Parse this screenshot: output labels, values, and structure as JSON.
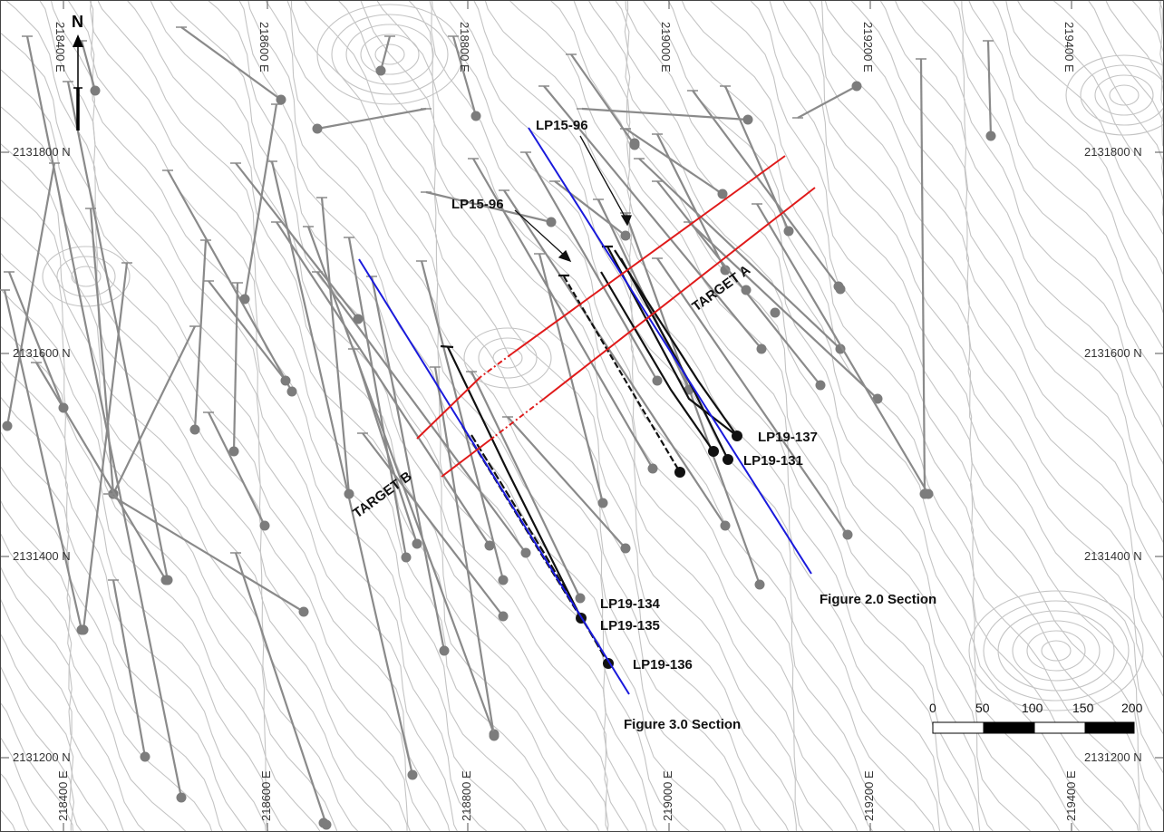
{
  "colors": {
    "contour": "#c4c4c4",
    "hole_trace": "#8a8a8a",
    "hole_collar": "#7c7c7c",
    "highlight_hole": "#111111",
    "section_line": "#1a1adc",
    "target_line": "#e01a1a",
    "grid_tick": "#555555"
  },
  "north_arrow": {
    "label": "N"
  },
  "grid": {
    "easting_top": [
      {
        "id": "e218400",
        "label": "218400 E"
      },
      {
        "id": "e218600",
        "label": "218600 E"
      },
      {
        "id": "e218800",
        "label": "218800 E"
      },
      {
        "id": "e219000",
        "label": "219000 E"
      },
      {
        "id": "e219200",
        "label": "219200 E"
      },
      {
        "id": "e219400",
        "label": "219400 E"
      }
    ],
    "easting_bottom": [
      {
        "id": "e218400",
        "label": "218400 E"
      },
      {
        "id": "e218600",
        "label": "218600 E"
      },
      {
        "id": "e218800",
        "label": "218800 E"
      },
      {
        "id": "e219000",
        "label": "219000 E"
      },
      {
        "id": "e219200",
        "label": "219200 E"
      },
      {
        "id": "e219400",
        "label": "219400 E"
      }
    ],
    "northing": [
      {
        "id": "n2131800",
        "label": "2131800 N"
      },
      {
        "id": "n2131600",
        "label": "2131600 N"
      },
      {
        "id": "n2131400",
        "label": "2131400 N"
      },
      {
        "id": "n2131200",
        "label": "2131200 N"
      }
    ]
  },
  "targets": [
    {
      "id": "target-a",
      "label": "TARGET A"
    },
    {
      "id": "target-b",
      "label": "TARGET B"
    }
  ],
  "sections": [
    {
      "id": "section-2",
      "label": "Figure 2.0 Section"
    },
    {
      "id": "section-3",
      "label": "Figure 3.0 Section"
    }
  ],
  "hole_labels": [
    {
      "id": "lp15-96-upper",
      "label": "LP15-96"
    },
    {
      "id": "lp15-96-lower",
      "label": "LP15-96"
    },
    {
      "id": "lp19-137",
      "label": "LP19-137"
    },
    {
      "id": "lp19-131",
      "label": "LP19-131"
    },
    {
      "id": "lp19-134",
      "label": "LP19-134"
    },
    {
      "id": "lp19-135",
      "label": "LP19-135"
    },
    {
      "id": "lp19-136",
      "label": "LP19-136"
    }
  ],
  "scale_bar": {
    "ticks": [
      "0",
      "50",
      "100",
      "150",
      "200"
    ]
  }
}
